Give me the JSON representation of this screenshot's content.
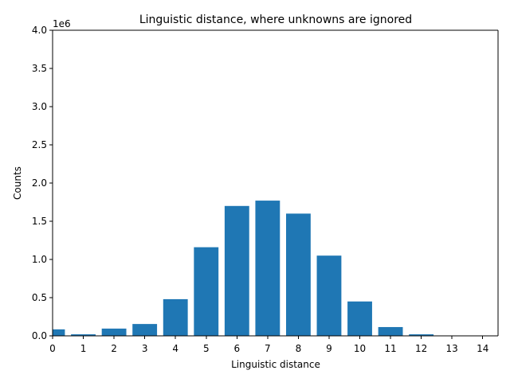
{
  "chart_data": {
    "type": "bar",
    "title": "Linguistic distance, where unknowns are ignored",
    "xlabel": "Linguistic distance",
    "ylabel": "Counts",
    "y_scale_label": "1e6",
    "x": [
      0,
      1,
      2,
      3,
      4,
      5,
      6,
      7,
      8,
      9,
      10,
      11,
      12,
      13,
      14
    ],
    "values": [
      85000,
      20000,
      95000,
      155000,
      480000,
      1160000,
      1700000,
      1770000,
      1600000,
      1050000,
      450000,
      115000,
      20000,
      3000,
      1000
    ],
    "xlim": [
      0,
      14.5
    ],
    "ylim": [
      0,
      4000000
    ],
    "x_ticks": [
      "0",
      "1",
      "2",
      "3",
      "4",
      "5",
      "6",
      "7",
      "8",
      "9",
      "10",
      "11",
      "12",
      "13",
      "14"
    ],
    "y_ticks": [
      "0.0",
      "0.5",
      "1.0",
      "1.5",
      "2.0",
      "2.5",
      "3.0",
      "3.5",
      "4.0"
    ],
    "bar_color": "#1f77b4",
    "grid": false,
    "legend": "none"
  }
}
